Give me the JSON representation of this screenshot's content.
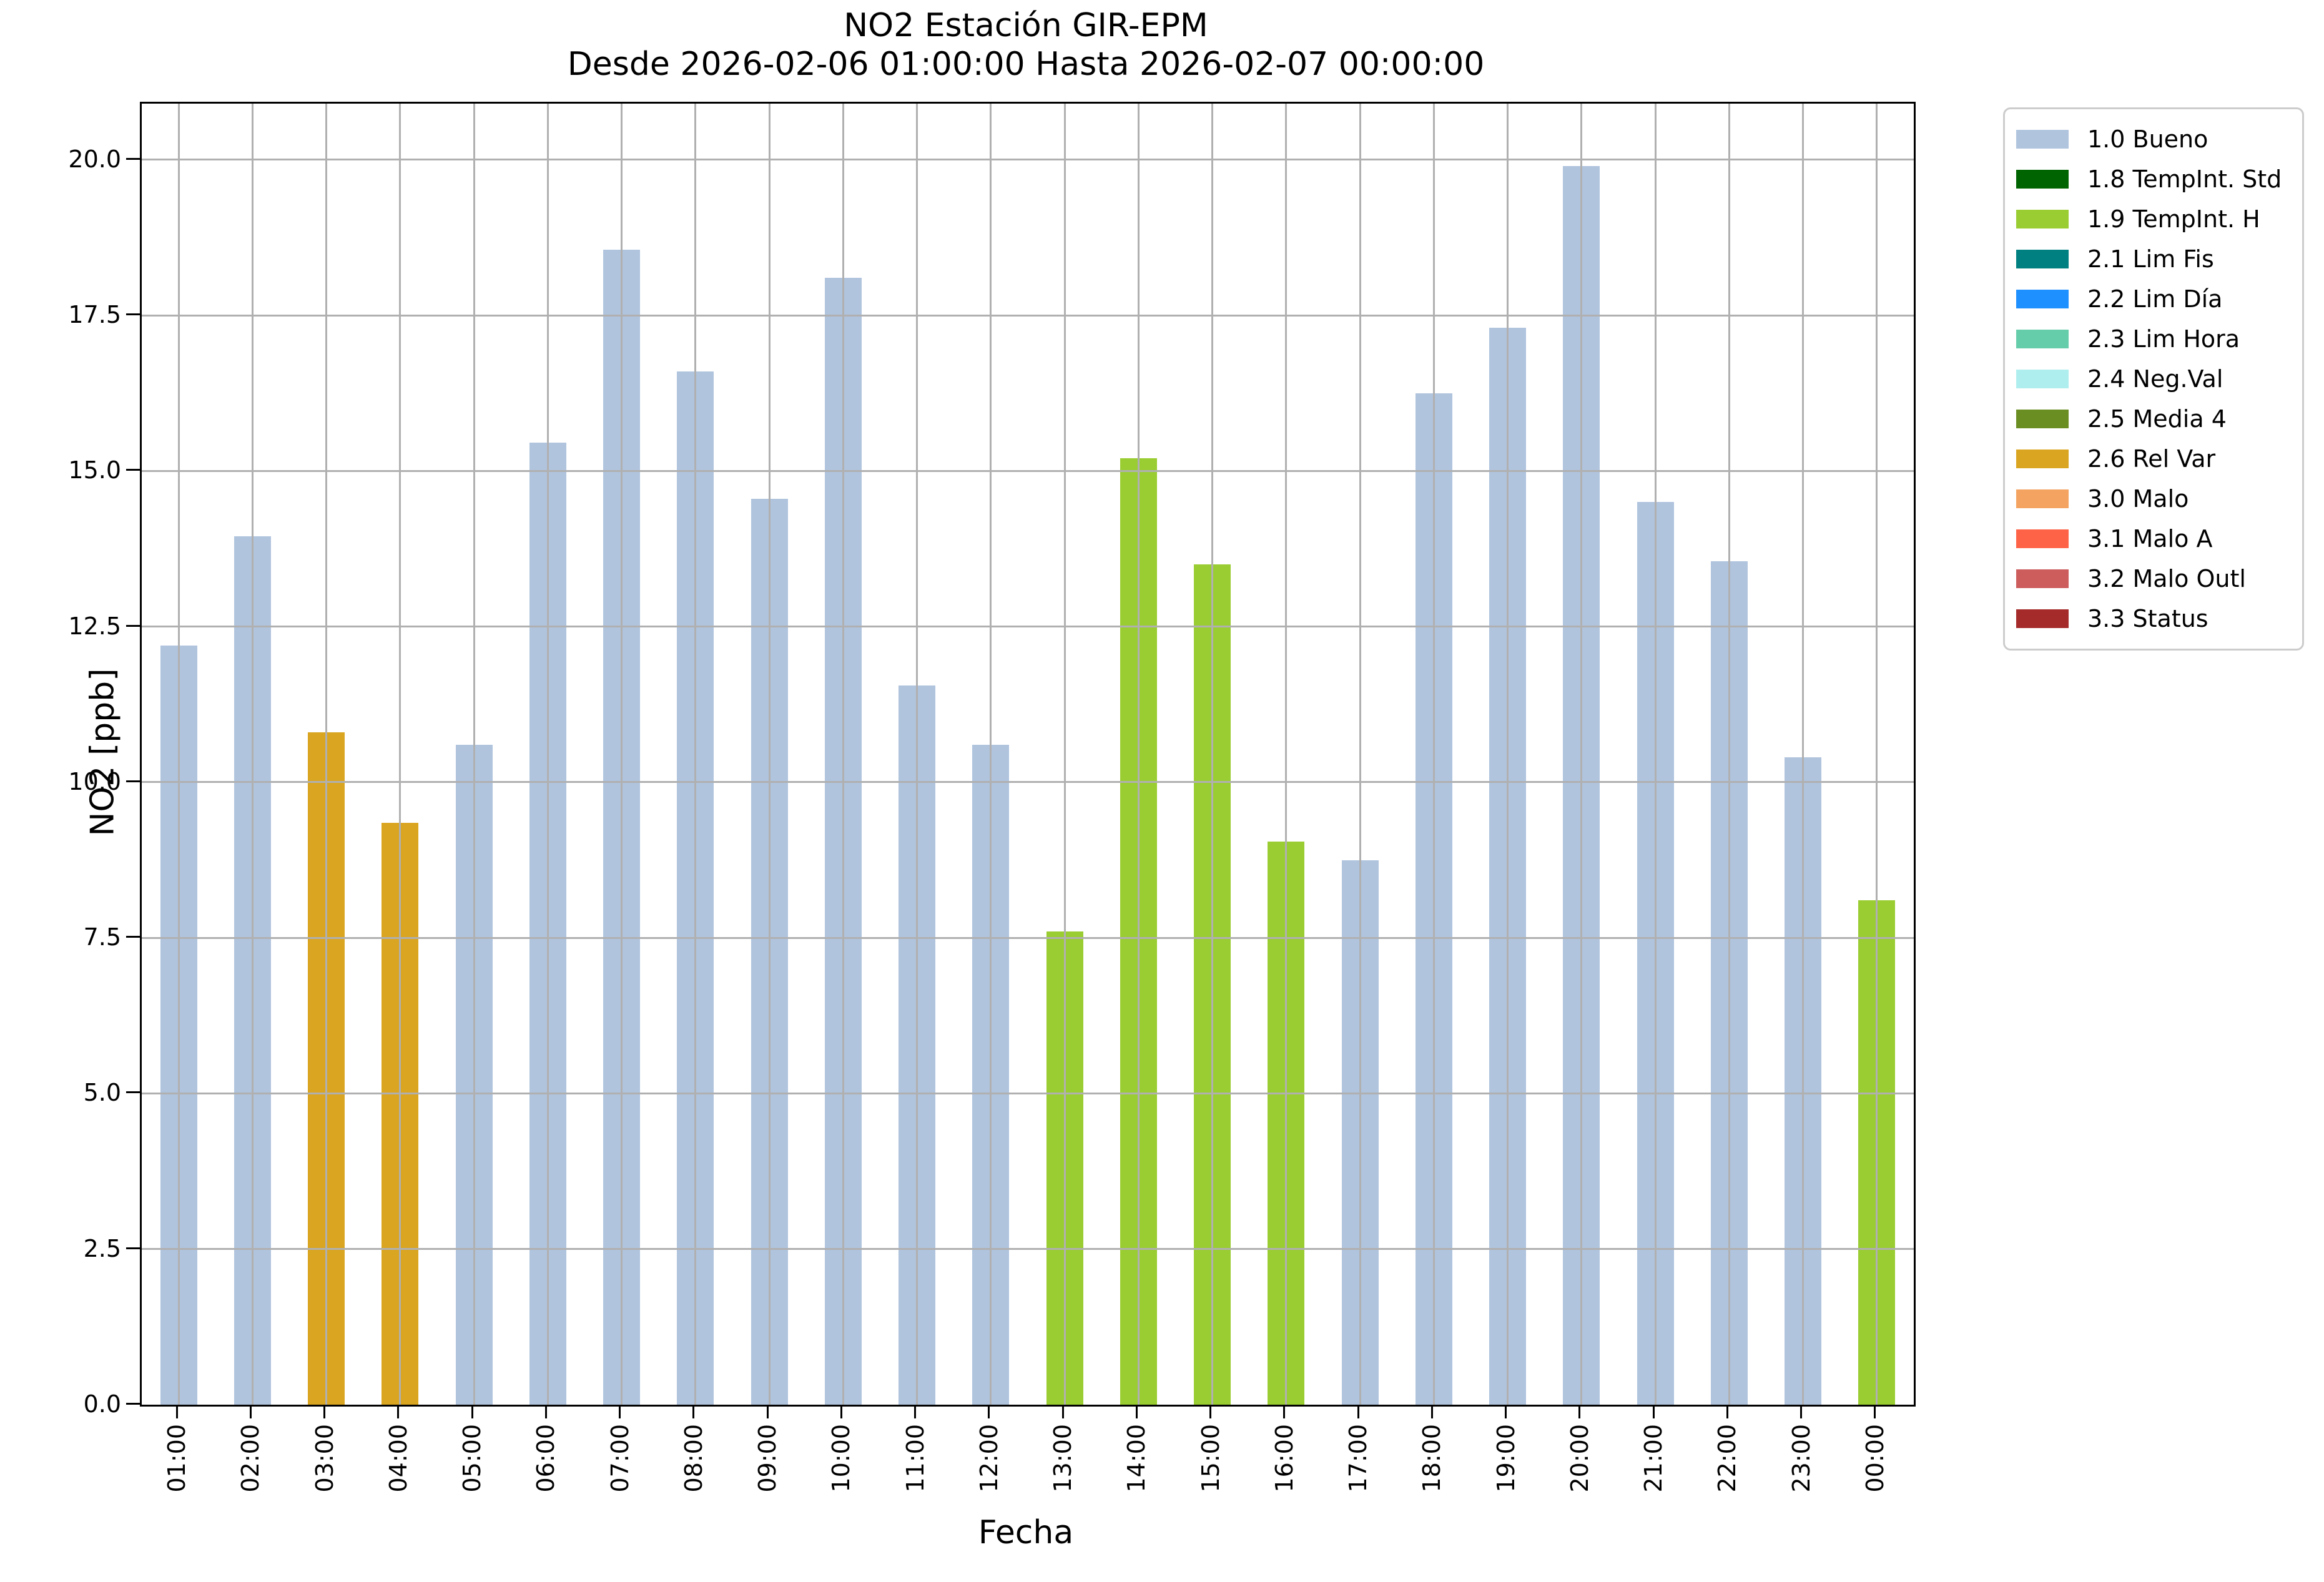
{
  "chart_data": {
    "type": "bar",
    "title": "NO2 Estación GIR-EPM",
    "subtitle": "Desde 2026-02-06 01:00:00 Hasta 2026-02-07 00:00:00",
    "xlabel": "Fecha",
    "ylabel": "NO2 [ppb]",
    "ylim": [
      0,
      20.9
    ],
    "yticks": [
      0.0,
      2.5,
      5.0,
      7.5,
      10.0,
      12.5,
      15.0,
      17.5,
      20.0
    ],
    "ytick_labels": [
      "0.0",
      "2.5",
      "5.0",
      "7.5",
      "10.0",
      "12.5",
      "15.0",
      "17.5",
      "20.0"
    ],
    "grid": true,
    "legend_position": "outside upper right",
    "categories": [
      "01:00",
      "02:00",
      "03:00",
      "04:00",
      "05:00",
      "06:00",
      "07:00",
      "08:00",
      "09:00",
      "10:00",
      "11:00",
      "12:00",
      "13:00",
      "14:00",
      "15:00",
      "16:00",
      "17:00",
      "18:00",
      "19:00",
      "20:00",
      "21:00",
      "22:00",
      "23:00",
      "00:00"
    ],
    "values": [
      12.2,
      13.95,
      10.8,
      9.35,
      10.6,
      15.45,
      18.55,
      16.6,
      14.55,
      18.1,
      11.55,
      10.6,
      7.6,
      15.2,
      13.5,
      9.05,
      8.75,
      16.25,
      17.3,
      19.9,
      14.5,
      13.55,
      10.4,
      8.1
    ],
    "flags": [
      "1.0 Bueno",
      "1.0 Bueno",
      "2.6 Rel Var",
      "2.6 Rel Var",
      "1.0 Bueno",
      "1.0 Bueno",
      "1.0 Bueno",
      "1.0 Bueno",
      "1.0 Bueno",
      "1.0 Bueno",
      "1.0 Bueno",
      "1.0 Bueno",
      "1.9 TempInt. H",
      "1.9 TempInt. H",
      "1.9 TempInt. H",
      "1.9 TempInt. H",
      "1.0 Bueno",
      "1.0 Bueno",
      "1.0 Bueno",
      "1.0 Bueno",
      "1.0 Bueno",
      "1.0 Bueno",
      "1.0 Bueno",
      "1.9 TempInt. H"
    ],
    "legend": [
      {
        "label": "1.0 Bueno",
        "color": "#B0C4DE"
      },
      {
        "label": "1.8 TempInt. Std",
        "color": "#006400"
      },
      {
        "label": "1.9 TempInt. H",
        "color": "#9ACD32"
      },
      {
        "label": "2.1 Lim Fis",
        "color": "#008080"
      },
      {
        "label": "2.2 Lim Día",
        "color": "#1E90FF"
      },
      {
        "label": "2.3 Lim Hora",
        "color": "#66CDAA"
      },
      {
        "label": "2.4 Neg.Val",
        "color": "#AFEEEE"
      },
      {
        "label": "2.5 Media 4",
        "color": "#6B8E23"
      },
      {
        "label": "2.6 Rel Var",
        "color": "#DAA520"
      },
      {
        "label": "3.0 Malo",
        "color": "#F4A460"
      },
      {
        "label": "3.1 Malo A",
        "color": "#FF6347"
      },
      {
        "label": "3.2 Malo Outl",
        "color": "#CD5C5C"
      },
      {
        "label": "3.3 Status",
        "color": "#A52A2A"
      }
    ],
    "grid_color": "#b0b0b0",
    "spine_color": "#000000"
  }
}
